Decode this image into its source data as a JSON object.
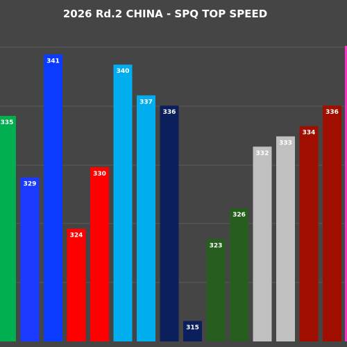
{
  "chart_data": {
    "type": "bar",
    "title": "2026 Rd.2 CHINA - SPQ TOP SPEED",
    "xlabel": "",
    "ylabel": "",
    "ylim": [
      313,
      344
    ],
    "grid": true,
    "legend": "none",
    "bars": [
      {
        "value": 335,
        "color": "#00b050",
        "label_color": "#ffffff"
      },
      {
        "value": 329,
        "color": "#1a3aff",
        "label_color": "#ffffff"
      },
      {
        "value": 341,
        "color": "#0a3cff",
        "label_color": "#ffffff"
      },
      {
        "value": 324,
        "color": "#ff0000",
        "label_color": "#ffffff"
      },
      {
        "value": 330,
        "color": "#ff0000",
        "label_color": "#ffffff"
      },
      {
        "value": 340,
        "color": "#00aeef",
        "label_color": "#ffffff"
      },
      {
        "value": 337,
        "color": "#00aeef",
        "label_color": "#ffffff"
      },
      {
        "value": 336,
        "color": "#0b1f5c",
        "label_color": "#ffffff"
      },
      {
        "value": 315,
        "color": "#0b1f5c",
        "label_color": "#ffffff"
      },
      {
        "value": 323,
        "color": "#275e1f",
        "label_color": "#ffffff"
      },
      {
        "value": 326,
        "color": "#275e1f",
        "label_color": "#ffffff"
      },
      {
        "value": 332,
        "color": "#c0c0c0",
        "label_color": "#ffffff"
      },
      {
        "value": 333,
        "color": "#c0c0c0",
        "label_color": "#ffffff"
      },
      {
        "value": 334,
        "color": "#a00e00",
        "label_color": "#ffffff"
      },
      {
        "value": 336,
        "color": "#a00e00",
        "label_color": "#ffffff"
      }
    ],
    "edge_bar": {
      "color": "#ff33cc"
    }
  }
}
